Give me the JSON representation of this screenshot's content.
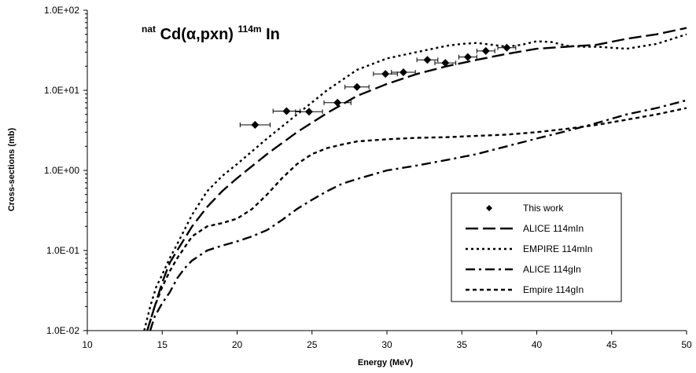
{
  "chart_data": {
    "type": "scatter",
    "title": {
      "prefix_sup": "nat",
      "main": "Cd(α,pxn)",
      "product_sup": "114m",
      "suffix": "In"
    },
    "xlabel": "Energy (MeV)",
    "ylabel": "Cross-sections (mb)",
    "xlim": [
      10,
      50
    ],
    "ylim": [
      0.01,
      100
    ],
    "yscale": "log",
    "grid": false,
    "legend_position": "lower-right",
    "x_ticks": [
      10,
      15,
      20,
      25,
      30,
      35,
      40,
      45,
      50
    ],
    "x_tick_labels": [
      "10",
      "15",
      "20",
      "25",
      "30",
      "35",
      "40",
      "45",
      "50"
    ],
    "y_ticks": [
      0.01,
      0.1,
      1,
      10,
      100
    ],
    "y_tick_labels": [
      "1.0E-02",
      "1.0E-01",
      "1.0E+00",
      "1.0E+01",
      "1.0E+02"
    ],
    "series": [
      {
        "name": "This work",
        "kind": "points",
        "marker": "diamond",
        "color": "#000000",
        "x": [
          21.2,
          23.3,
          24.8,
          26.7,
          28.0,
          29.9,
          31.1,
          32.7,
          33.9,
          35.4,
          36.6,
          38.0
        ],
        "y": [
          3.7,
          5.5,
          5.4,
          7.0,
          11.0,
          16.0,
          16.8,
          24.0,
          22.0,
          26.0,
          31.0,
          34.0
        ],
        "xerr": [
          1.0,
          0.9,
          0.9,
          0.9,
          0.8,
          0.8,
          0.8,
          0.7,
          0.7,
          0.6,
          0.6,
          0.6
        ]
      },
      {
        "name": "ALICE 114mIn",
        "kind": "line",
        "dash": "longdash",
        "color": "#000000",
        "x": [
          14.0,
          14.5,
          15.0,
          15.5,
          16.0,
          17.0,
          18.0,
          19.0,
          20.0,
          22.0,
          24.0,
          26.0,
          28.0,
          30.0,
          32.0,
          34.0,
          36.0,
          38.0,
          40.0,
          42.0,
          44.0,
          46.0,
          48.0,
          50.0
        ],
        "y": [
          0.01,
          0.02,
          0.04,
          0.07,
          0.1,
          0.2,
          0.35,
          0.55,
          0.8,
          1.6,
          3.0,
          5.2,
          8.5,
          12.0,
          16.0,
          20.0,
          24.0,
          28.5,
          33.0,
          35.0,
          37.0,
          44.0,
          50.0,
          60.0
        ]
      },
      {
        "name": "EMPIRE 114mIn",
        "kind": "line",
        "dash": "dot",
        "color": "#000000",
        "x": [
          13.8,
          14.2,
          14.6,
          15.0,
          15.5,
          16.0,
          17.0,
          18.0,
          19.0,
          20.0,
          22.0,
          24.0,
          26.0,
          28.0,
          30.0,
          32.0,
          34.0,
          35.0,
          36.0,
          37.0,
          38.0,
          39.0,
          40.0,
          41.0,
          42.0,
          43.0,
          44.0,
          46.0,
          48.0,
          50.0
        ],
        "y": [
          0.01,
          0.02,
          0.035,
          0.05,
          0.08,
          0.12,
          0.28,
          0.55,
          0.85,
          1.2,
          2.5,
          5.0,
          10.0,
          18.0,
          25.0,
          30.0,
          36.0,
          38.0,
          39.0,
          37.0,
          35.0,
          37.0,
          41.0,
          40.0,
          36.0,
          35.0,
          35.0,
          33.0,
          38.0,
          50.0
        ]
      },
      {
        "name": "ALICE 114gIn",
        "kind": "line",
        "dash": "dashdot",
        "color": "#000000",
        "x": [
          14.2,
          14.5,
          15.0,
          15.5,
          16.0,
          16.5,
          17.0,
          18.0,
          19.0,
          20.0,
          21.0,
          22.0,
          23.0,
          24.0,
          25.0,
          26.0,
          27.0,
          28.0,
          30.0,
          32.0,
          34.0,
          36.0,
          38.0,
          40.0,
          42.0,
          44.0,
          46.0,
          48.0,
          50.0
        ],
        "y": [
          0.01,
          0.015,
          0.022,
          0.03,
          0.045,
          0.06,
          0.075,
          0.1,
          0.115,
          0.13,
          0.15,
          0.18,
          0.24,
          0.33,
          0.43,
          0.55,
          0.68,
          0.78,
          1.0,
          1.15,
          1.35,
          1.6,
          2.0,
          2.5,
          3.1,
          3.9,
          5.0,
          6.0,
          7.5
        ]
      },
      {
        "name": "Empire 114gIn",
        "kind": "line",
        "dash": "shortdash",
        "color": "#000000",
        "x": [
          14.0,
          14.5,
          15.0,
          15.5,
          16.0,
          17.0,
          18.0,
          19.0,
          20.0,
          21.0,
          22.0,
          23.0,
          24.0,
          25.0,
          26.0,
          27.0,
          28.0,
          30.0,
          32.0,
          34.0,
          36.0,
          38.0,
          40.0,
          42.0,
          44.0,
          46.0,
          48.0,
          50.0
        ],
        "y": [
          0.01,
          0.02,
          0.035,
          0.055,
          0.08,
          0.15,
          0.2,
          0.22,
          0.25,
          0.33,
          0.5,
          0.8,
          1.2,
          1.6,
          1.9,
          2.1,
          2.3,
          2.45,
          2.55,
          2.6,
          2.7,
          2.8,
          3.0,
          3.3,
          3.7,
          4.3,
          5.0,
          6.0
        ]
      }
    ]
  }
}
